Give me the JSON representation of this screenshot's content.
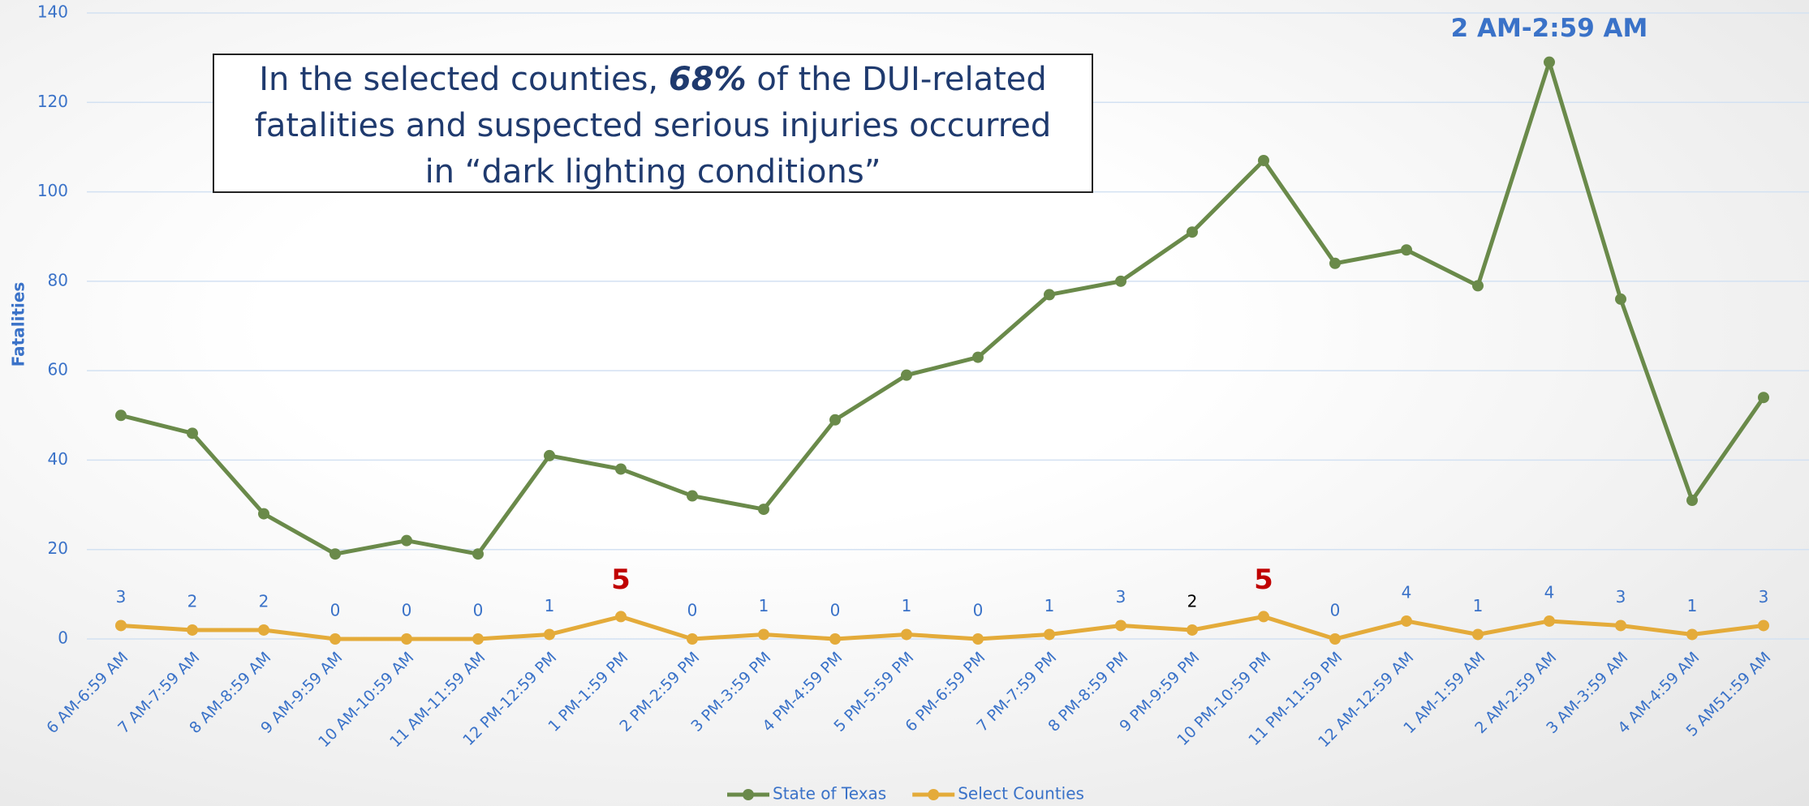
{
  "chart_data": {
    "type": "line",
    "y_axis_label": "Fatalities",
    "annotation": {
      "before": "In the selected counties, ",
      "emphasis": "68%",
      "after": " of the DUI-related fatalities and suspected serious injuries occurred in “dark lighting conditions”"
    },
    "peak_label": "2 AM-2:59 AM",
    "categories": [
      "6 AM-6:59 AM",
      "7 AM-7:59 AM",
      "8 AM-8:59 AM",
      "9 AM-9:59 AM",
      "10 AM-10:59 AM",
      "11 AM-11:59 AM",
      "12 PM-12:59 PM",
      "1 PM-1:59 PM",
      "2 PM-2:59 PM",
      "3 PM-3:59 PM",
      "4 PM-4:59 PM",
      "5 PM-5:59 PM",
      "6 PM-6:59 PM",
      "7 PM-7:59 PM",
      "8 PM-8:59 PM",
      "9 PM-9:59 PM",
      "10 PM-10:59 PM",
      "11 PM-11:59 PM",
      "12 AM-12:59 AM",
      "1 AM-1:59 AM",
      "2 AM-2:59 AM",
      "3 AM-3:59 AM",
      "4 AM-4:59 AM",
      "5 AM51:59 AM"
    ],
    "series": [
      {
        "name": "State of Texas",
        "color": "#6a8a4a",
        "values": [
          50,
          46,
          28,
          19,
          22,
          19,
          41,
          38,
          32,
          29,
          49,
          59,
          63,
          77,
          80,
          91,
          107,
          84,
          87,
          79,
          129,
          76,
          31,
          54
        ]
      },
      {
        "name": "Select Counties",
        "color": "#e4ab3a",
        "values": [
          3,
          2,
          2,
          0,
          0,
          0,
          1,
          5,
          0,
          1,
          0,
          1,
          0,
          1,
          3,
          2,
          5,
          0,
          4,
          1,
          4,
          3,
          1,
          3
        ],
        "value_label_colors": [
          "#3a72c8",
          "#3a72c8",
          "#3a72c8",
          "#3a72c8",
          "#3a72c8",
          "#3a72c8",
          "#3a72c8",
          "#c00000",
          "#3a72c8",
          "#3a72c8",
          "#3a72c8",
          "#3a72c8",
          "#3a72c8",
          "#3a72c8",
          "#3a72c8",
          "#000000",
          "#c00000",
          "#3a72c8",
          "#3a72c8",
          "#3a72c8",
          "#3a72c8",
          "#3a72c8",
          "#3a72c8",
          "#3a72c8"
        ]
      }
    ],
    "ylim": [
      0,
      140
    ],
    "yticks": [
      0,
      20,
      40,
      60,
      80,
      100,
      120,
      140
    ],
    "grid": true,
    "legend": "bottom"
  }
}
